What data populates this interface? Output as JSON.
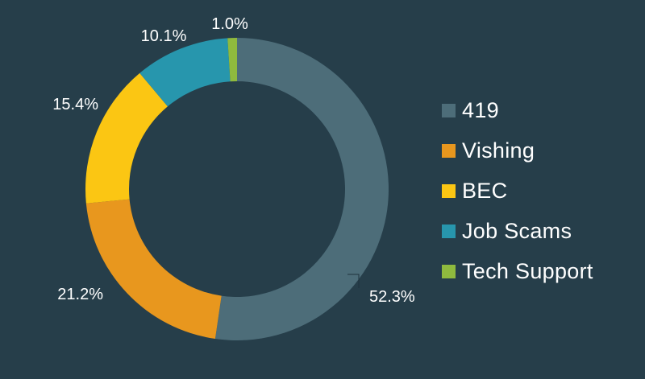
{
  "chart_data": {
    "type": "pie",
    "title": "",
    "categories": [
      "419",
      "Vishing",
      "BEC",
      "Job Scams",
      "Tech Support"
    ],
    "values": [
      52.3,
      21.2,
      15.4,
      10.1,
      1.0
    ],
    "value_labels": [
      "52.3%",
      "21.2%",
      "15.4%",
      "10.1%",
      "1.0%"
    ],
    "colors": [
      "#4d6d79",
      "#e8971e",
      "#fbc613",
      "#2796ad",
      "#8fba3e"
    ],
    "donut": true,
    "legend_position": "right",
    "background": "#263e4a"
  }
}
